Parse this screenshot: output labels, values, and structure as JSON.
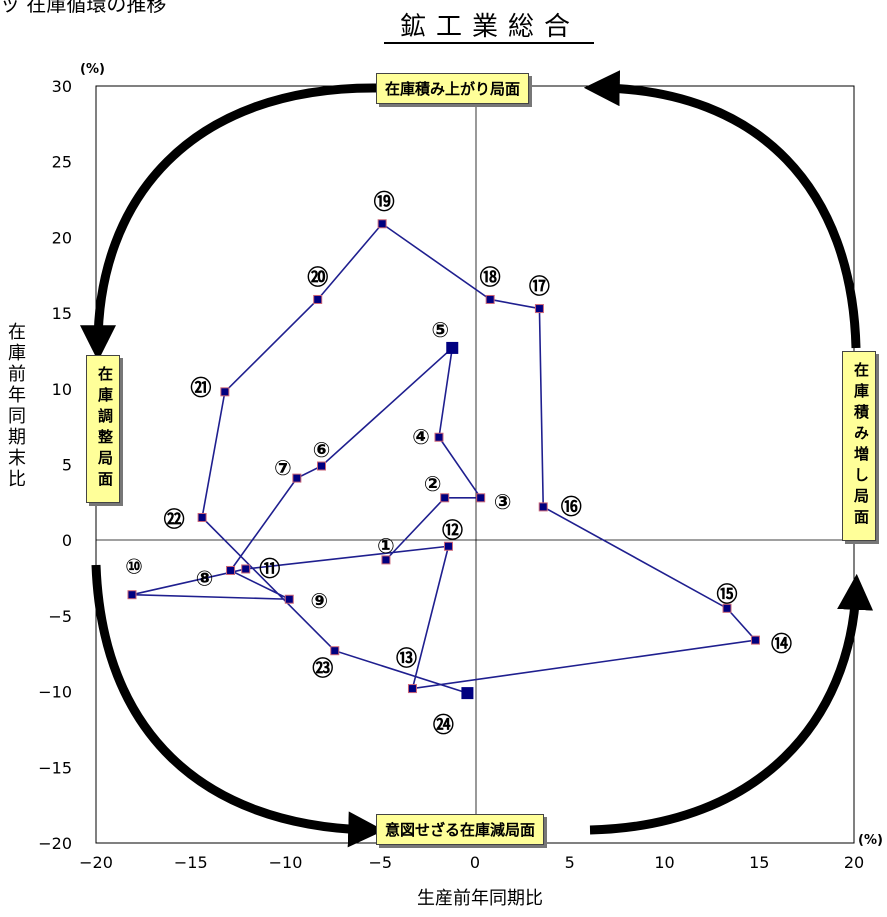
{
  "page_title": "ッ 在庫循環の推移",
  "chart_data": {
    "type": "scatter",
    "title": "鉱工業総合",
    "xlabel": "生産前年同期比",
    "ylabel": "在庫前年同期末比",
    "x_unit": "(%)",
    "y_unit": "(%)",
    "xlim": [
      -20,
      20
    ],
    "ylim": [
      -20,
      30
    ],
    "x_ticks": [
      -20,
      -15,
      -10,
      -5,
      0,
      5,
      10,
      15,
      20
    ],
    "y_ticks": [
      -20,
      -15,
      -10,
      -5,
      0,
      5,
      10,
      15,
      20,
      25,
      30
    ],
    "grid": false,
    "connected": true,
    "series": [
      {
        "points": [
          {
            "label": "①",
            "x": -4.7,
            "y": -1.3
          },
          {
            "label": "②",
            "x": -1.6,
            "y": 2.8
          },
          {
            "label": "③",
            "x": 0.3,
            "y": 2.8
          },
          {
            "label": "④",
            "x": -1.9,
            "y": 6.8
          },
          {
            "label": "⑤",
            "x": -1.2,
            "y": 12.7
          },
          {
            "label": "⑥",
            "x": -8.1,
            "y": 4.9
          },
          {
            "label": "⑦",
            "x": -9.4,
            "y": 4.1
          },
          {
            "label": "⑧",
            "x": -12.9,
            "y": -2.0
          },
          {
            "label": "⑨",
            "x": -9.8,
            "y": -3.9
          },
          {
            "label": "⑩",
            "x": -18.1,
            "y": -3.6
          },
          {
            "label": "⑪",
            "x": -12.1,
            "y": -1.9
          },
          {
            "label": "⑫",
            "x": -1.4,
            "y": -0.4
          },
          {
            "label": "⑬",
            "x": -3.3,
            "y": -9.8
          },
          {
            "label": "⑭",
            "x": 14.8,
            "y": -6.6
          },
          {
            "label": "⑮",
            "x": 13.3,
            "y": -4.5
          },
          {
            "label": "⑯",
            "x": 3.6,
            "y": 2.2
          },
          {
            "label": "⑰",
            "x": 3.4,
            "y": 15.3
          },
          {
            "label": "⑱",
            "x": 0.8,
            "y": 15.9
          },
          {
            "label": "⑲",
            "x": -4.9,
            "y": 20.9
          },
          {
            "label": "⑳",
            "x": -8.3,
            "y": 15.9
          },
          {
            "label": "㉑",
            "x": -13.2,
            "y": 9.8
          },
          {
            "label": "㉒",
            "x": -14.4,
            "y": 1.5
          },
          {
            "label": "㉓",
            "x": -7.4,
            "y": -7.3
          },
          {
            "label": "㉔",
            "x": -0.4,
            "y": -10.1
          }
        ]
      }
    ],
    "phases": {
      "top": "在庫積み上がり局面",
      "left": "在庫調整局面",
      "right": "在庫積み増し局面",
      "bottom": "意図せざる在庫減局面"
    },
    "colors": {
      "line": "#1f1f8f",
      "marker_fill": "#000080",
      "marker_edge": "#cc6677",
      "phase_fill": "#ffff99",
      "arrow": "#000000"
    }
  }
}
